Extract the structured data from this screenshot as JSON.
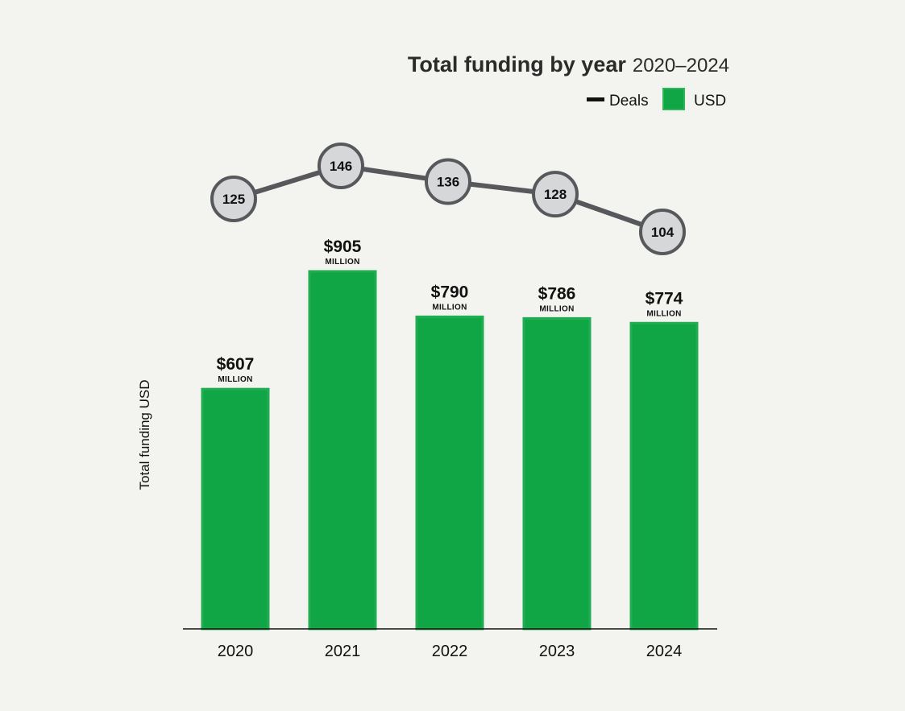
{
  "chart_data": {
    "type": "bar",
    "title": "Total funding by year",
    "subtitle": "2020–2024",
    "xlabel": "",
    "ylabel": "Total funding USD",
    "categories": [
      "2020",
      "2021",
      "2022",
      "2023",
      "2024"
    ],
    "series": [
      {
        "name": "USD",
        "type": "bar",
        "values": [
          607,
          905,
          790,
          786,
          774
        ],
        "labels": [
          "$607",
          "$905",
          "$790",
          "$786",
          "$774"
        ],
        "unit_label": "MILLION",
        "color": "#10a545"
      },
      {
        "name": "Deals",
        "type": "line",
        "values": [
          125,
          146,
          136,
          128,
          104
        ],
        "color": "#56585c"
      }
    ],
    "legend": {
      "position": "top-right",
      "items": [
        "Deals",
        "USD"
      ]
    },
    "ylim": [
      0,
      905
    ],
    "grid": false
  }
}
